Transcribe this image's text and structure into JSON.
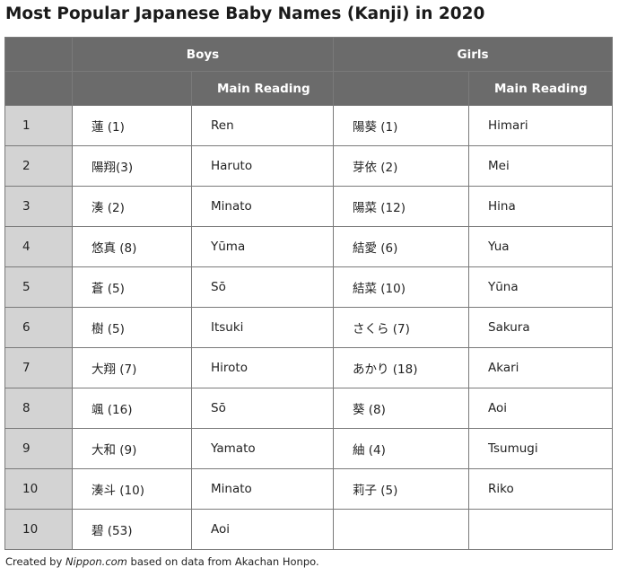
{
  "title": "Most Popular Japanese Baby Names (Kanji) in 2020",
  "header": {
    "boys": "Boys",
    "girls": "Girls",
    "main_reading": "Main Reading"
  },
  "rows": [
    {
      "rank": "1",
      "boy_kanji": "蓮 (1)",
      "boy_reading": "Ren",
      "girl_kanji": "陽葵 (1)",
      "girl_reading": "Himari"
    },
    {
      "rank": "2",
      "boy_kanji": "陽翔(3)",
      "boy_reading": "Haruto",
      "girl_kanji": "芽依 (2)",
      "girl_reading": "Mei"
    },
    {
      "rank": "3",
      "boy_kanji": "湊 (2)",
      "boy_reading": "Minato",
      "girl_kanji": "陽菜 (12)",
      "girl_reading": "Hina"
    },
    {
      "rank": "4",
      "boy_kanji": "悠真 (8)",
      "boy_reading": "Yūma",
      "girl_kanji": "結愛 (6)",
      "girl_reading": "Yua"
    },
    {
      "rank": "5",
      "boy_kanji": "蒼 (5)",
      "boy_reading": "Sō",
      "girl_kanji": "結菜 (10)",
      "girl_reading": "Yūna"
    },
    {
      "rank": "6",
      "boy_kanji": "樹 (5)",
      "boy_reading": "Itsuki",
      "girl_kanji": "さくら (7)",
      "girl_reading": "Sakura"
    },
    {
      "rank": "7",
      "boy_kanji": "大翔 (7)",
      "boy_reading": "Hiroto",
      "girl_kanji": "あかり (18)",
      "girl_reading": "Akari"
    },
    {
      "rank": "8",
      "boy_kanji": "颯 (16)",
      "boy_reading": "Sō",
      "girl_kanji": "葵 (8)",
      "girl_reading": "Aoi"
    },
    {
      "rank": "9",
      "boy_kanji": "大和 (9)",
      "boy_reading": "Yamato",
      "girl_kanji": "紬 (4)",
      "girl_reading": "Tsumugi"
    },
    {
      "rank": "10",
      "boy_kanji": "湊斗 (10)",
      "boy_reading": "Minato",
      "girl_kanji": "莉子 (5)",
      "girl_reading": "Riko"
    },
    {
      "rank": "10",
      "boy_kanji": "碧 (53)",
      "boy_reading": "Aoi",
      "girl_kanji": "",
      "girl_reading": ""
    }
  ],
  "footer": {
    "prefix": "Created by ",
    "source": "Nippon.com",
    "suffix": " based on data from Akachan Honpo."
  },
  "colors": {
    "header_bg": "#6b6b6b",
    "rank_bg": "#d3d3d3",
    "border": "#7a7a7a"
  }
}
